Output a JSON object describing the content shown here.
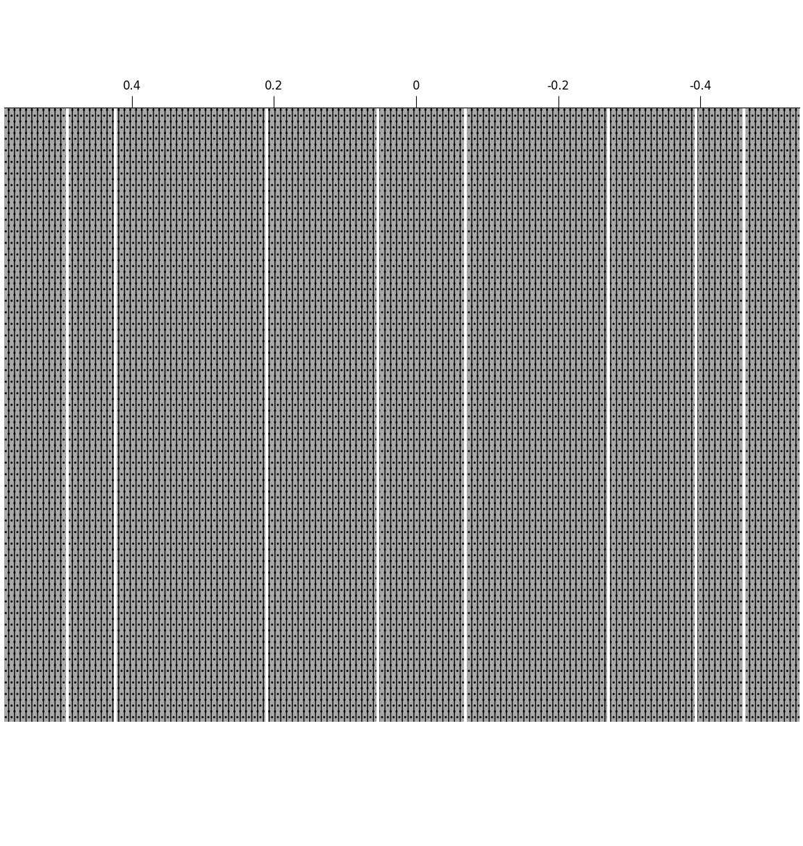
{
  "chart_data": {
    "type": "texture",
    "xlim": [
      0.58,
      -0.54
    ],
    "xticks": [
      0.4,
      0.2,
      0,
      -0.2,
      -0.4
    ],
    "tick_labels": "x",
    "color": "#000000",
    "grid": false
  }
}
